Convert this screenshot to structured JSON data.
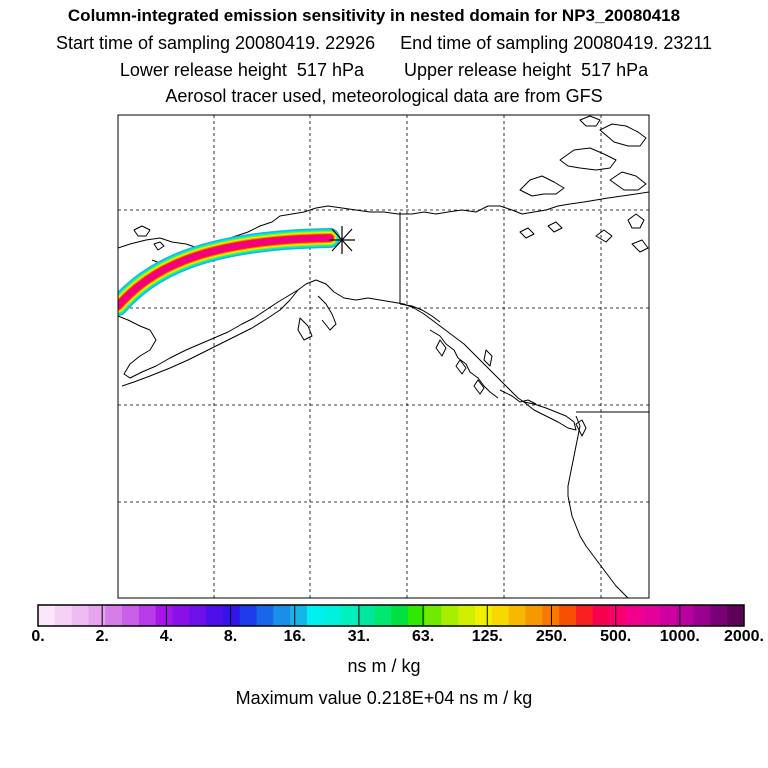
{
  "title": {
    "line1": "Column-integrated emission sensitivity in nested domain for NP3_20080418",
    "start_time": "Start time of sampling 20080419. 22926",
    "end_time": "End time of sampling 20080419. 23211",
    "lower_height": "Lower release height  517 hPa",
    "upper_height": "Upper release height  517 hPa",
    "line4": "Aerosol tracer used, meteorological data are from GFS"
  },
  "colorbar": {
    "ticks": [
      "0.",
      "2.",
      "4.",
      "8.",
      "16.",
      "31.",
      "63.",
      "125.",
      "250.",
      "500.",
      "1000.",
      "2000."
    ],
    "unit": "ns m / kg",
    "colors": [
      "#fbe6fb",
      "#f5d2f5",
      "#eebcf2",
      "#e6a4ee",
      "#d67ee8",
      "#c860ea",
      "#b83cea",
      "#a616ea",
      "#8a10ea",
      "#6e10ea",
      "#4e10ea",
      "#3414ea",
      "#1f3cea",
      "#1a66ea",
      "#1890ea",
      "#14b6ea",
      "#00f0f0",
      "#00f0e0",
      "#00f0c0",
      "#00e8a0",
      "#00e870",
      "#00e040",
      "#30e800",
      "#70ea00",
      "#a8ee00",
      "#d0f000",
      "#f0f000",
      "#f8d800",
      "#f8b800",
      "#f89800",
      "#f87800",
      "#f85000",
      "#f82020",
      "#f80050",
      "#f80070",
      "#f0008a",
      "#e4009a",
      "#d000a0",
      "#b800a0",
      "#9a0090",
      "#7a0078",
      "#5c0058"
    ]
  },
  "max_value": "Maximum value  0.218E+04 ns m / kg",
  "map": {
    "release_marker": "release-site-asterisk"
  }
}
